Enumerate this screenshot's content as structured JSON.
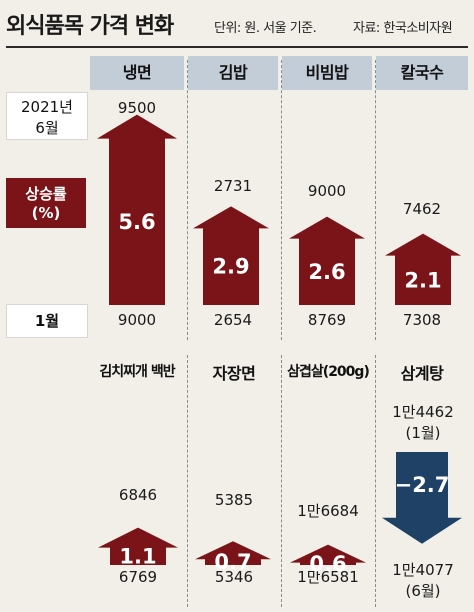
{
  "title": "외식품목 가격 변화",
  "unit_note": "단위: 원. 서울 기준.",
  "source": "자료: 한국소비자원",
  "labels": {
    "top_date_line1": "2021년",
    "top_date_line2": "6월",
    "rate_line1": "상승률",
    "rate_line2": "(%)",
    "bottom_date": "1월"
  },
  "colors": {
    "rise": "#7a1418",
    "fall": "#1f4166",
    "header_bg": "#c2cdd8",
    "background": "#f1efe7"
  },
  "chart_data": {
    "type": "bar",
    "value_label": "상승률 (%)",
    "series": [
      {
        "name": "냉면",
        "jan": "9000",
        "jun": "9500",
        "rate": 5.6,
        "rate_label": "5.6"
      },
      {
        "name": "김밥",
        "jan": "2654",
        "jun": "2731",
        "rate": 2.9,
        "rate_label": "2.9"
      },
      {
        "name": "비빔밥",
        "jan": "8769",
        "jun": "9000",
        "rate": 2.6,
        "rate_label": "2.6"
      },
      {
        "name": "칼국수",
        "jan": "7308",
        "jun": "7462",
        "rate": 2.1,
        "rate_label": "2.1"
      },
      {
        "name": "김치찌개 백반",
        "jan": "6769",
        "jun": "6846",
        "rate": 1.1,
        "rate_label": "1.1"
      },
      {
        "name": "자장면",
        "jan": "5346",
        "jun": "5385",
        "rate": 0.7,
        "rate_label": "0.7"
      },
      {
        "name": "삼겹살(200g)",
        "jan": "1만6581",
        "jun": "1만6684",
        "rate": 0.6,
        "rate_label": "0.6"
      },
      {
        "name": "삼계탕",
        "jan": "1만4462",
        "jan_sub": "(1월)",
        "jun": "1만4077",
        "jun_sub": "(6월)",
        "rate": -2.7,
        "rate_label": "−2.7"
      }
    ]
  }
}
